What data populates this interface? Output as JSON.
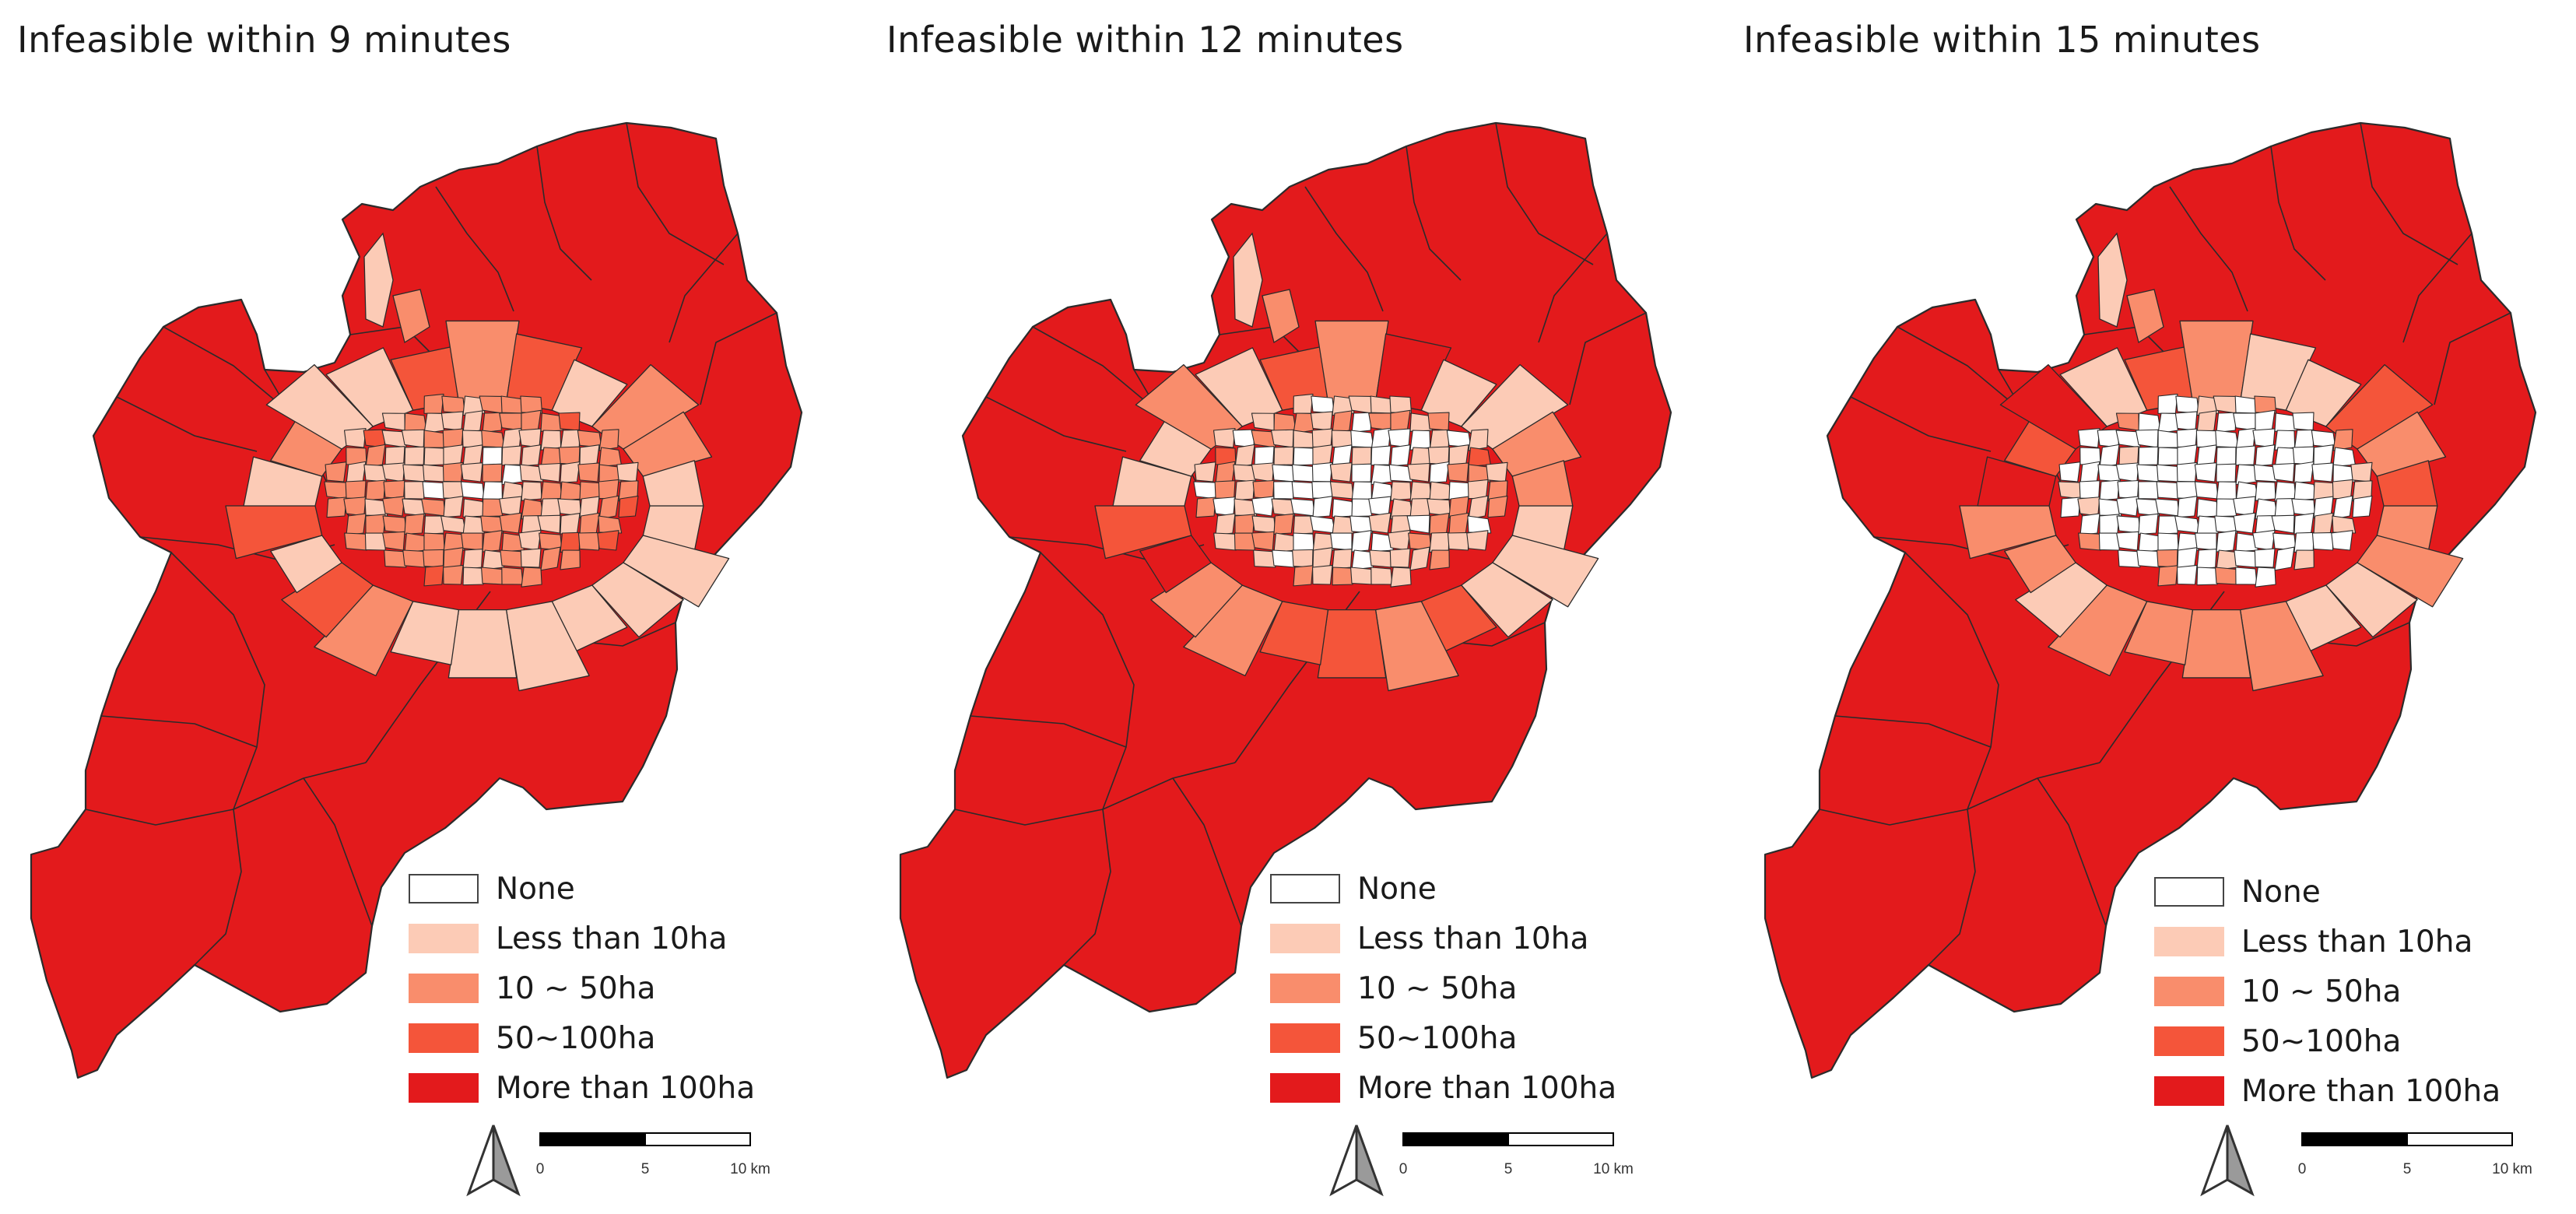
{
  "colors": {
    "none": "#ffffff",
    "less_than_10": "#fccbb6",
    "ten_to_50": "#f98d6c",
    "fifty_to_100": "#f4553a",
    "more_than_100": "#e31a1c",
    "boundary": "#2b2b2b"
  },
  "legend": [
    {
      "label": "None",
      "class": "none"
    },
    {
      "label": "Less than 10ha",
      "class": "less_than_10"
    },
    {
      "label": "10 ~ 50ha",
      "class": "ten_to_50"
    },
    {
      "label": "50~100ha",
      "class": "fifty_to_100"
    },
    {
      "label": "More than 100ha",
      "class": "more_than_100"
    }
  ],
  "scalebar": {
    "ticks": [
      "0",
      "5",
      "10 km"
    ]
  },
  "north_arrow": {
    "icon": "north-arrow-icon"
  },
  "panels": [
    {
      "title": "Infeasible within 9 minutes",
      "core": {
        "none": 0.22,
        "less_than_10": 0.38,
        "ten_to_50": 0.33,
        "fifty_to_100": 0.07
      },
      "ring": {
        "less_than_10": 0.35,
        "ten_to_50": 0.35,
        "fifty_to_100": 0.2,
        "more_than_100": 0.1
      }
    },
    {
      "title": "Infeasible within 12 minutes",
      "core": {
        "none": 0.5,
        "less_than_10": 0.27,
        "ten_to_50": 0.2,
        "fifty_to_100": 0.03
      },
      "ring": {
        "less_than_10": 0.3,
        "ten_to_50": 0.4,
        "fifty_to_100": 0.2,
        "more_than_100": 0.1
      }
    },
    {
      "title": "Infeasible within 15 minutes",
      "core": {
        "none": 0.78,
        "less_than_10": 0.12,
        "ten_to_50": 0.1,
        "fifty_to_100": 0.0
      },
      "ring": {
        "less_than_10": 0.25,
        "ten_to_50": 0.45,
        "fifty_to_100": 0.2,
        "more_than_100": 0.1
      }
    }
  ]
}
